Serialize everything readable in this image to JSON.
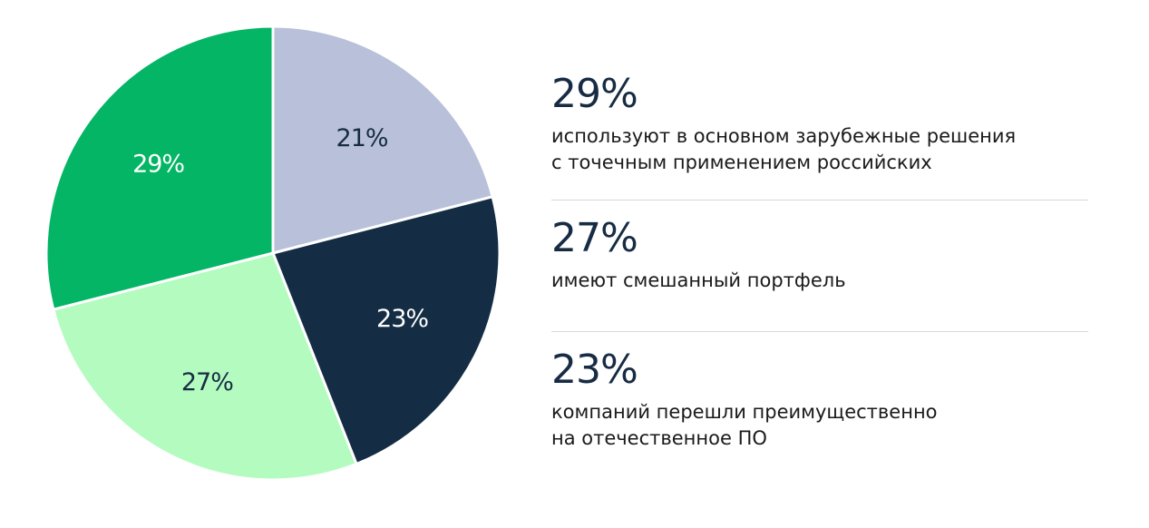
{
  "chart_data": {
    "type": "pie",
    "values": [
      21,
      23,
      27,
      29
    ],
    "labels": [
      "21%",
      "23%",
      "27%",
      "29%"
    ],
    "colors": [
      "#b9c0d9",
      "#142d44",
      "#b3fbbf",
      "#03b565"
    ],
    "label_colors": [
      "#172c44",
      "#ffffff",
      "#172c44",
      "#ffffff"
    ],
    "start": "top",
    "direction": "clockwise"
  },
  "legend": {
    "items": [
      {
        "pct": "29%",
        "desc_line1": "используют в основном зарубежные решения",
        "desc_line2": "с точечным применением российских"
      },
      {
        "pct": "27%",
        "desc_line1": "имеют смешанный портфель",
        "desc_line2": ""
      },
      {
        "pct": "23%",
        "desc_line1": "компаний перешли преимущественно",
        "desc_line2": "на отечественное ПО"
      }
    ]
  }
}
